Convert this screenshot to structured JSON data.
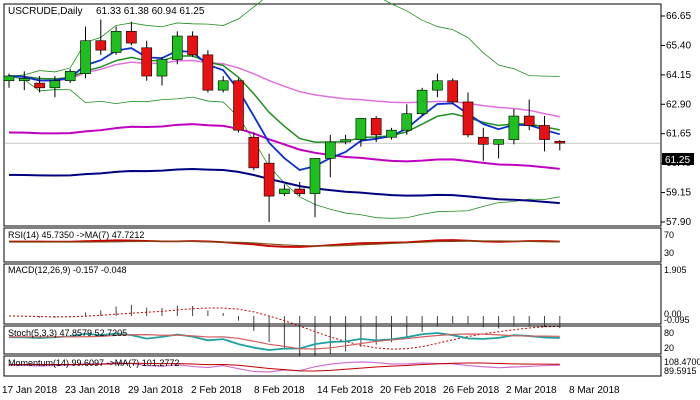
{
  "header": {
    "symbol": "USCRUDE,Daily",
    "ohlc": "61.33 61.38 60.94 61.25"
  },
  "current_price_label": "61.25",
  "colors": {
    "bull": "#1fbf1f",
    "bear": "#e81010",
    "outline": "#000000",
    "ema_blue": "#0a2fd0",
    "ema_green": "#1f8f1f",
    "ma_pink": "#e070e0",
    "ma_magenta": "#c000c0",
    "ma_navy": "#000080",
    "bb_green": "#1f8f1f",
    "rsi_red": "#cc0000",
    "rsi_brown": "#7a4a10",
    "stoch_teal": "#20a0a0",
    "stoch_pink": "#d06060",
    "momentum_pink": "#d070d0",
    "momentum_red": "#c00000"
  },
  "panels": {
    "rsi": {
      "label": "RSI(14) 45.7350 ->MA(7) 47.7212",
      "ticks": [
        "70",
        "30"
      ]
    },
    "macd": {
      "label": "MACD(12,26,9) -0.157 -0.048",
      "ticks": [
        "1.905",
        "0.00",
        "-0.095"
      ]
    },
    "stoch": {
      "label": "Stoch(5,3,3) 47.8579 52.7205",
      "ticks": [
        "80",
        "20"
      ]
    },
    "momentum": {
      "label": "Momentum(14) 99.6097 ->MA(7) 101.2772",
      "ticks": [
        "108.4700",
        "89.5915"
      ]
    }
  },
  "chart_data": {
    "type": "candlestick",
    "price_axis_ticks": [
      "66.65",
      "65.40",
      "64.15",
      "62.90",
      "61.65",
      "60.40",
      "59.15",
      "57.90"
    ],
    "x_axis_labels": [
      "17 Jan 2018",
      "23 Jan 2018",
      "29 Jan 2018",
      "2 Feb 2018",
      "8 Feb 2018",
      "14 Feb 2018",
      "20 Feb 2018",
      "26 Feb 2018",
      "2 Mar 2018",
      "8 Mar 2018"
    ],
    "candles": [
      {
        "o": 63.9,
        "h": 64.2,
        "l": 63.6,
        "c": 64.1
      },
      {
        "o": 63.9,
        "h": 64.3,
        "l": 63.5,
        "c": 64.0
      },
      {
        "o": 63.8,
        "h": 64.1,
        "l": 63.4,
        "c": 63.6
      },
      {
        "o": 63.6,
        "h": 64.1,
        "l": 63.2,
        "c": 63.9
      },
      {
        "o": 63.9,
        "h": 64.4,
        "l": 63.8,
        "c": 64.3
      },
      {
        "o": 64.2,
        "h": 66.2,
        "l": 64.0,
        "c": 65.6
      },
      {
        "o": 65.6,
        "h": 66.5,
        "l": 65.0,
        "c": 65.2
      },
      {
        "o": 65.1,
        "h": 66.2,
        "l": 65.0,
        "c": 66.0
      },
      {
        "o": 66.0,
        "h": 66.4,
        "l": 65.4,
        "c": 65.5
      },
      {
        "o": 65.3,
        "h": 65.6,
        "l": 63.9,
        "c": 64.1
      },
      {
        "o": 64.1,
        "h": 64.9,
        "l": 63.7,
        "c": 64.8
      },
      {
        "o": 64.8,
        "h": 66.0,
        "l": 64.6,
        "c": 65.8
      },
      {
        "o": 65.8,
        "h": 66.0,
        "l": 64.9,
        "c": 65.0
      },
      {
        "o": 65.0,
        "h": 65.2,
        "l": 63.4,
        "c": 63.5
      },
      {
        "o": 63.5,
        "h": 64.1,
        "l": 63.4,
        "c": 63.9
      },
      {
        "o": 63.9,
        "h": 64.0,
        "l": 61.7,
        "c": 61.8
      },
      {
        "o": 61.5,
        "h": 61.7,
        "l": 60.1,
        "c": 60.2
      },
      {
        "o": 60.4,
        "h": 60.8,
        "l": 57.9,
        "c": 59.0
      },
      {
        "o": 59.1,
        "h": 59.5,
        "l": 59.0,
        "c": 59.3
      },
      {
        "o": 59.3,
        "h": 59.6,
        "l": 59.0,
        "c": 59.1
      },
      {
        "o": 59.1,
        "h": 60.6,
        "l": 58.1,
        "c": 60.6
      },
      {
        "o": 60.6,
        "h": 61.6,
        "l": 59.8,
        "c": 61.3
      },
      {
        "o": 61.3,
        "h": 61.6,
        "l": 61.2,
        "c": 61.4
      },
      {
        "o": 61.4,
        "h": 62.3,
        "l": 61.1,
        "c": 62.3
      },
      {
        "o": 62.3,
        "h": 62.4,
        "l": 61.3,
        "c": 61.6
      },
      {
        "o": 61.5,
        "h": 61.9,
        "l": 61.4,
        "c": 61.8
      },
      {
        "o": 61.8,
        "h": 62.9,
        "l": 61.6,
        "c": 62.5
      },
      {
        "o": 62.5,
        "h": 63.6,
        "l": 62.4,
        "c": 63.5
      },
      {
        "o": 63.5,
        "h": 64.2,
        "l": 63.2,
        "c": 63.9
      },
      {
        "o": 63.9,
        "h": 64.0,
        "l": 62.9,
        "c": 63.0
      },
      {
        "o": 63.0,
        "h": 63.4,
        "l": 61.5,
        "c": 61.6
      },
      {
        "o": 61.5,
        "h": 61.9,
        "l": 60.5,
        "c": 61.2
      },
      {
        "o": 61.2,
        "h": 61.4,
        "l": 60.6,
        "c": 61.4
      },
      {
        "o": 61.4,
        "h": 62.7,
        "l": 61.2,
        "c": 62.4
      },
      {
        "o": 62.4,
        "h": 63.1,
        "l": 61.8,
        "c": 62.0
      },
      {
        "o": 62.0,
        "h": 62.4,
        "l": 60.9,
        "c": 61.4
      },
      {
        "o": 61.33,
        "h": 61.38,
        "l": 60.94,
        "c": 61.25
      }
    ],
    "ylim": [
      57.9,
      66.65
    ]
  }
}
